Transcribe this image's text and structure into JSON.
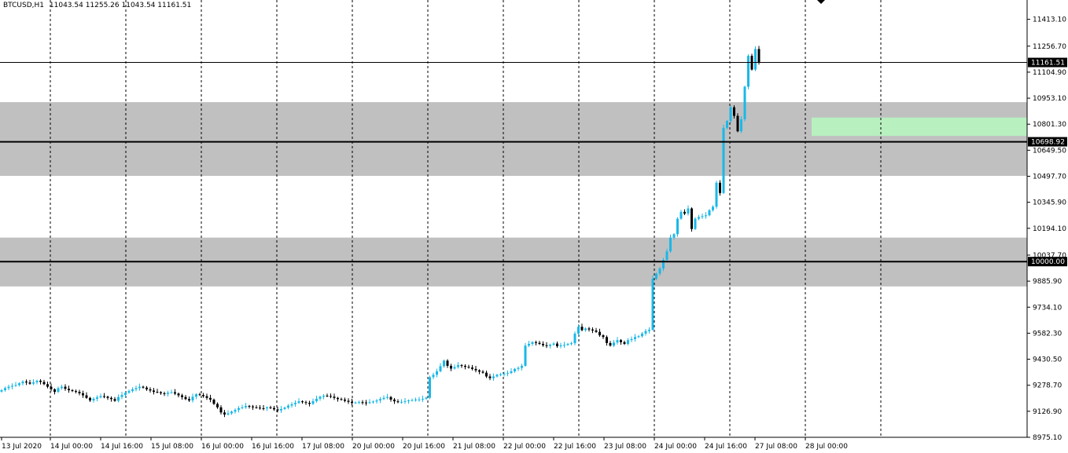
{
  "header": {
    "symbol": "BTCUSD,H1",
    "ohlc": "11043.54 11255.26 11043.54 11161.51"
  },
  "chart_data": {
    "type": "candlestick",
    "title": "BTCUSD,H1",
    "ylim": [
      8975.1,
      11480
    ],
    "y_ticks": [
      "11413.10",
      "11256.70",
      "11104.90",
      "10953.10",
      "10801.30",
      "10649.50",
      "10497.70",
      "10345.90",
      "10194.10",
      "10037.70",
      "9885.90",
      "9734.10",
      "9582.30",
      "9430.50",
      "9278.70",
      "9126.90",
      "8975.10"
    ],
    "x_ticks": [
      "13 Jul 2020",
      "14 Jul 00:00",
      "14 Jul 16:00",
      "15 Jul 08:00",
      "16 Jul 00:00",
      "16 Jul 16:00",
      "17 Jul 08:00",
      "20 Jul 00:00",
      "20 Jul 16:00",
      "21 Jul 08:00",
      "22 Jul 00:00",
      "22 Jul 16:00",
      "23 Jul 08:00",
      "24 Jul 00:00",
      "24 Jul 16:00",
      "27 Jul 08:00",
      "28 Jul 00:00"
    ],
    "price_labels": [
      "11161.51",
      "10698.92",
      "10000.00"
    ],
    "horizontal_lines": [
      {
        "value": 11161.51,
        "label": "11161.51",
        "style": "thin"
      },
      {
        "value": 10698.92,
        "label": "10698.92",
        "style": "thick"
      },
      {
        "value": 10000.0,
        "label": "10000.00",
        "style": "thick"
      }
    ],
    "zones": [
      {
        "from": 10500,
        "to": 10930,
        "color": "#c0c0c0"
      },
      {
        "from": 9855,
        "to": 10140,
        "color": "#c0c0c0"
      },
      {
        "from": 10733,
        "to": 10840,
        "color": "#b8f0c0",
        "start_x_tick": "28 Jul 00:00"
      }
    ],
    "up_color": "#1ab8e8",
    "down_color": "#000000",
    "closes": [
      9250,
      9262,
      9270,
      9275,
      9280,
      9290,
      9300,
      9295,
      9288,
      9296,
      9305,
      9298,
      9285,
      9270,
      9255,
      9240,
      9262,
      9270,
      9258,
      9250,
      9245,
      9240,
      9232,
      9220,
      9205,
      9190,
      9200,
      9208,
      9215,
      9212,
      9205,
      9198,
      9188,
      9210,
      9222,
      9235,
      9245,
      9255,
      9262,
      9270,
      9265,
      9255,
      9248,
      9240,
      9238,
      9232,
      9228,
      9235,
      9238,
      9230,
      9220,
      9210,
      9198,
      9190,
      9212,
      9226,
      9222,
      9215,
      9205,
      9195,
      9170,
      9150,
      9120,
      9108,
      9115,
      9125,
      9135,
      9145,
      9150,
      9158,
      9155,
      9150,
      9148,
      9145,
      9144,
      9150,
      9146,
      9138,
      9132,
      9140,
      9148,
      9160,
      9168,
      9176,
      9185,
      9180,
      9176,
      9170,
      9186,
      9200,
      9212,
      9218,
      9216,
      9212,
      9205,
      9198,
      9195,
      9188,
      9182,
      9175,
      9178,
      9180,
      9178,
      9175,
      9180,
      9184,
      9190,
      9198,
      9205,
      9210,
      9195,
      9185,
      9180,
      9182,
      9186,
      9190,
      9192,
      9195,
      9196,
      9200,
      9206,
      9326,
      9340,
      9360,
      9390,
      9422,
      9392,
      9376,
      9385,
      9396,
      9392,
      9386,
      9382,
      9374,
      9366,
      9358,
      9352,
      9330,
      9320,
      9330,
      9340,
      9342,
      9346,
      9350,
      9360,
      9374,
      9380,
      9392,
      9510,
      9520,
      9530,
      9526,
      9520,
      9512,
      9508,
      9515,
      9522,
      9506,
      9512,
      9514,
      9520,
      9524,
      9580,
      9620,
      9600,
      9610,
      9604,
      9598,
      9590,
      9570,
      9560,
      9525,
      9510,
      9528,
      9542,
      9530,
      9520,
      9542,
      9548,
      9560,
      9565,
      9580,
      9595,
      9602,
      9900,
      9930,
      9960,
      10010,
      10060,
      10140,
      10160,
      10250,
      10290,
      10280,
      10310,
      10190,
      10250,
      10260,
      10265,
      10270,
      10300,
      10320,
      10460,
      10400,
      10780,
      10820,
      10900,
      10850,
      10760,
      10830,
      11020,
      11200,
      11120,
      11240,
      11161
    ]
  }
}
